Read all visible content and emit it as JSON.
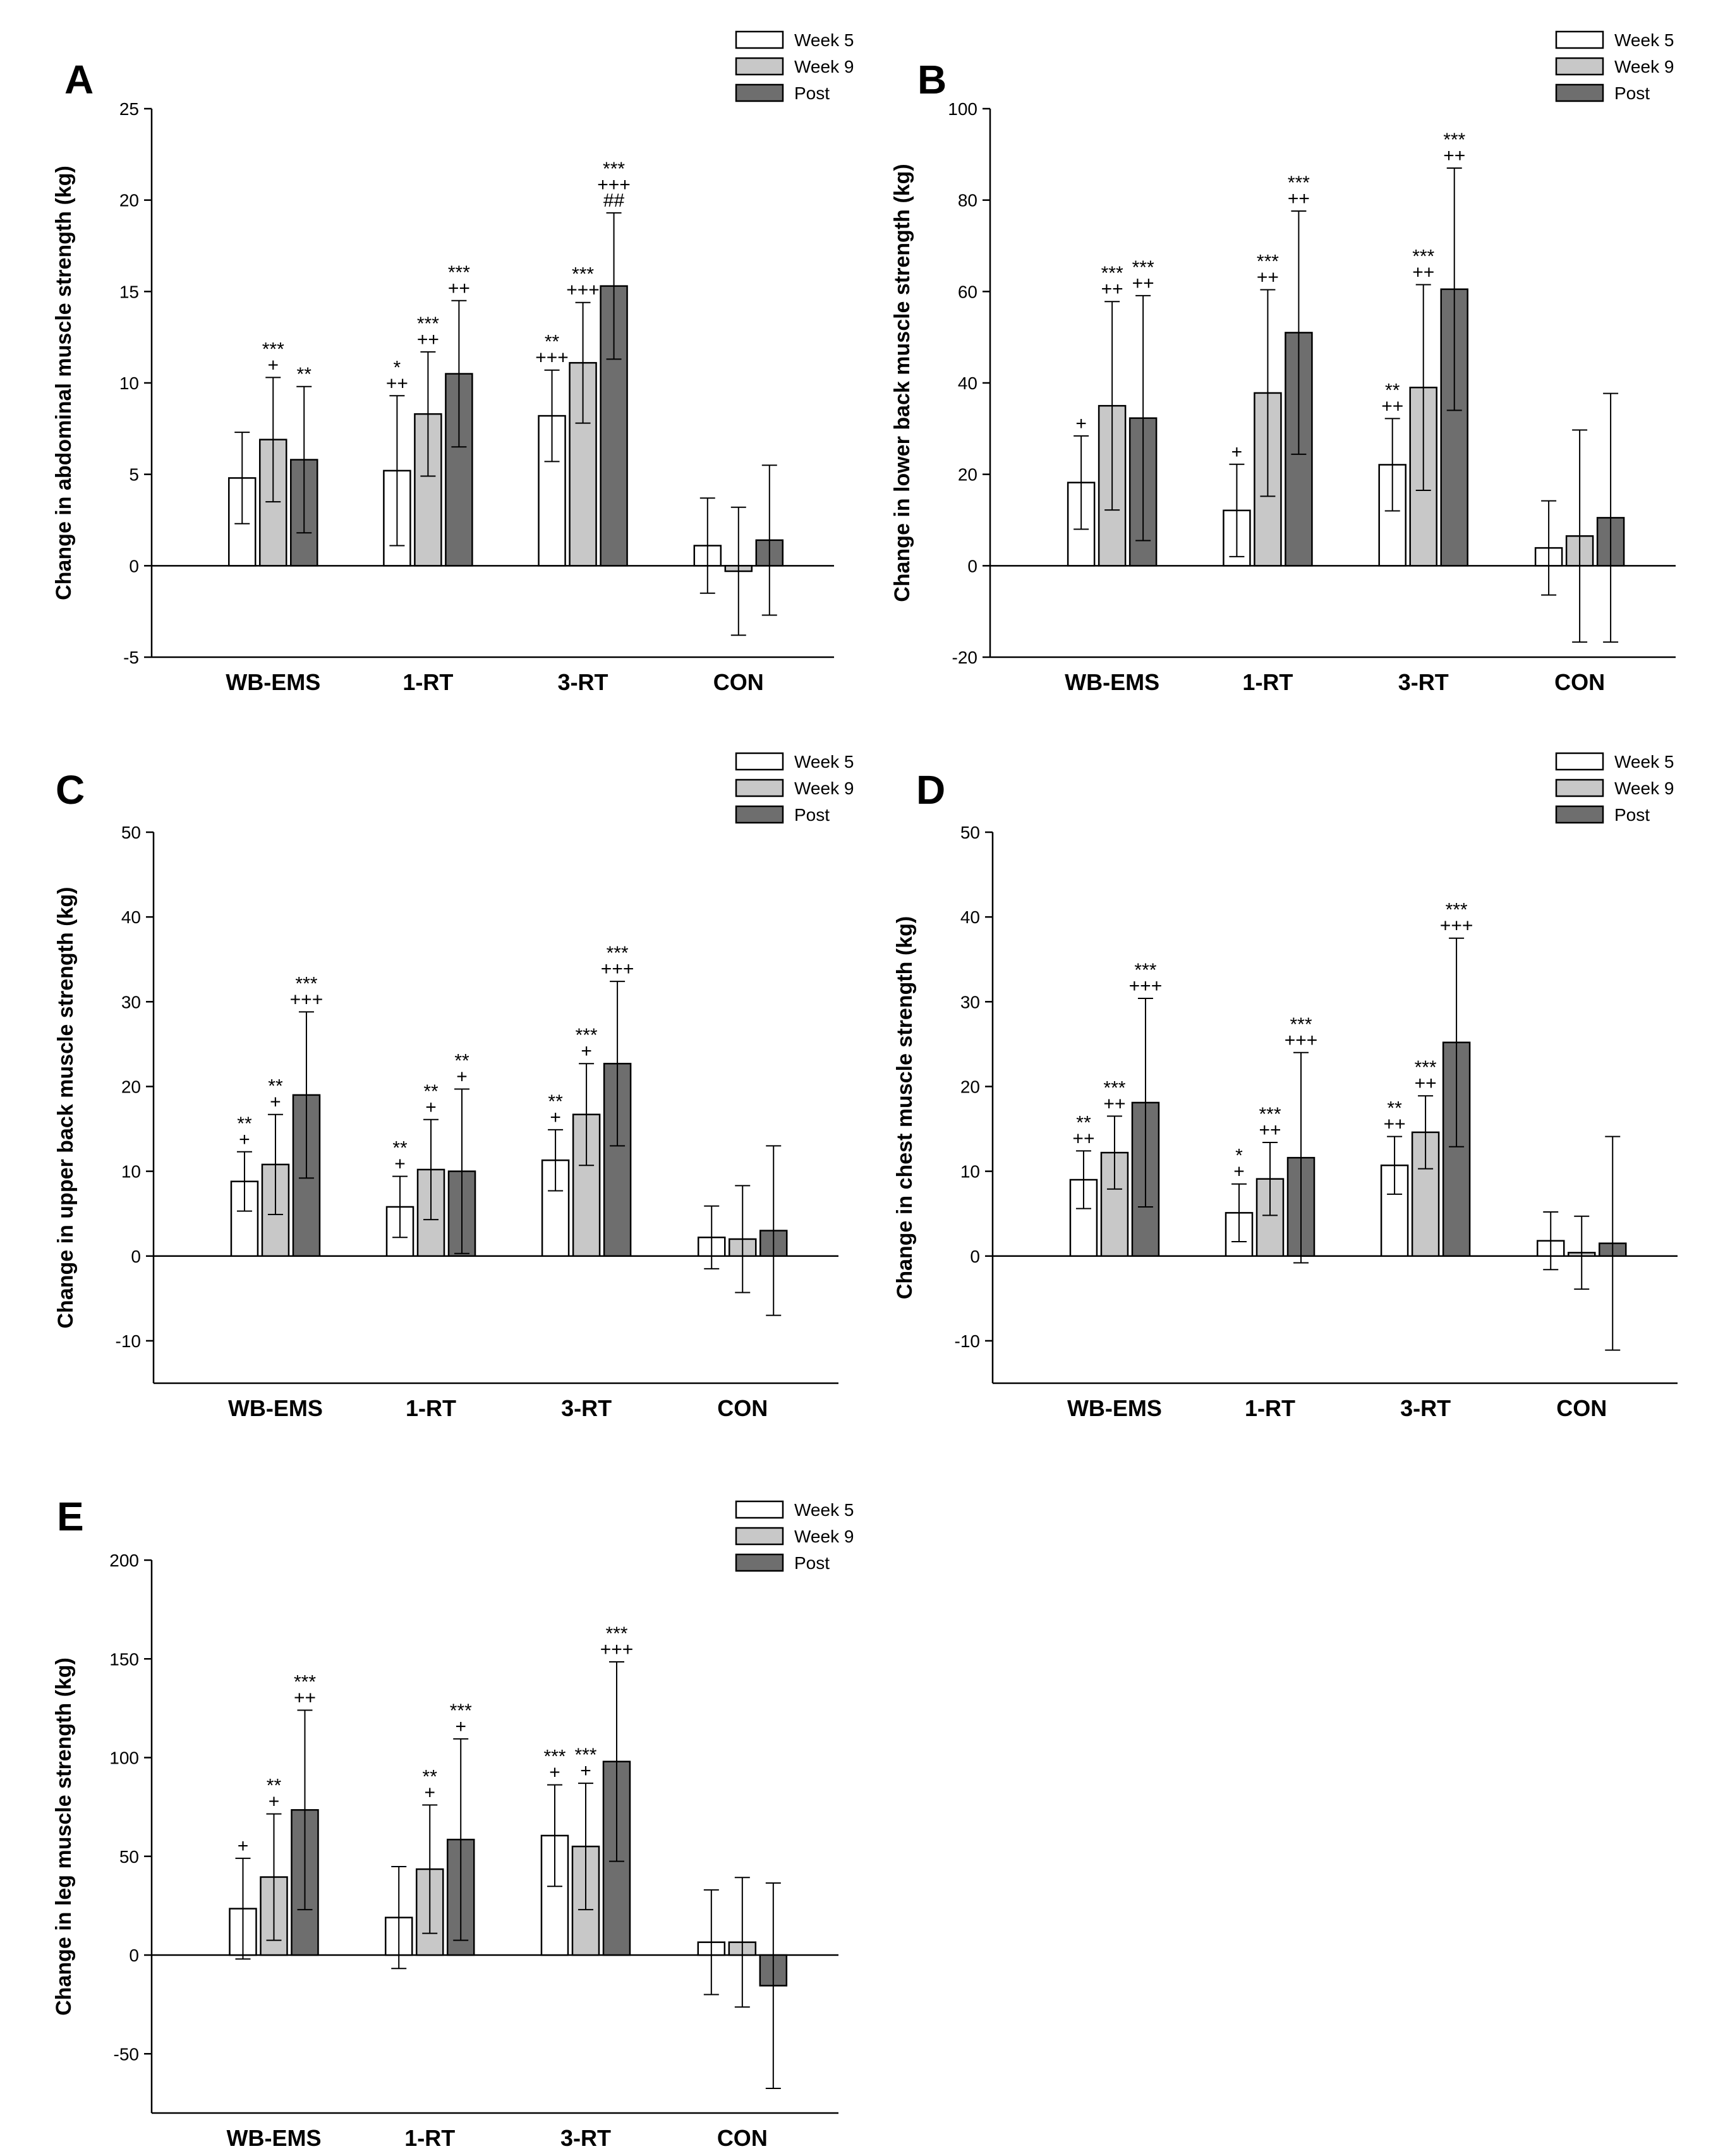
{
  "chart_data": [
    {
      "type": "bar",
      "panel": "A",
      "ylabel": "Change in abdominal muscle strength (kg)",
      "categories": [
        "WB-EMS",
        "1-RT",
        "3-RT",
        "CON"
      ],
      "ylim": [
        -5,
        25
      ],
      "yticks": [
        -5,
        0,
        5,
        10,
        15,
        20,
        25
      ],
      "legend": [
        "Week 5",
        "Week 9",
        "Post"
      ],
      "series": [
        {
          "name": "Week 5",
          "color": "#ffffff",
          "values": [
            4.8,
            5.2,
            8.2,
            1.1
          ],
          "errors": [
            2.5,
            4.1,
            2.5,
            2.6
          ],
          "labels": [
            "",
            "*\n++",
            "**\n+++",
            ""
          ]
        },
        {
          "name": "Week 9",
          "color": "#c8c8c8",
          "values": [
            6.9,
            8.3,
            11.1,
            -0.3
          ],
          "errors": [
            3.4,
            3.4,
            3.3,
            3.5
          ],
          "labels": [
            "***\n+",
            "***\n++",
            "***\n+++",
            ""
          ]
        },
        {
          "name": "Post",
          "color": "#6e6e6e",
          "values": [
            5.8,
            10.5,
            15.3,
            1.4
          ],
          "errors": [
            4.0,
            4.0,
            4.0,
            4.1
          ],
          "labels": [
            "**",
            "***\n++",
            "***\n+++\n##",
            ""
          ]
        }
      ]
    },
    {
      "type": "bar",
      "panel": "B",
      "ylabel": "Change in lower back muscle strength (kg)",
      "categories": [
        "WB-EMS",
        "1-RT",
        "3-RT",
        "CON"
      ],
      "ylim": [
        -20,
        100
      ],
      "yticks": [
        -20,
        0,
        20,
        40,
        60,
        80,
        100
      ],
      "legend": [
        "Week 5",
        "Week 9",
        "Post"
      ],
      "series": [
        {
          "name": "Week 5",
          "color": "#ffffff",
          "values": [
            18.2,
            12.1,
            22.1,
            3.9
          ],
          "errors": [
            10.2,
            10.1,
            10.1,
            10.3
          ],
          "labels": [
            "+",
            "+",
            "**\n++",
            ""
          ]
        },
        {
          "name": "Week 9",
          "color": "#c8c8c8",
          "values": [
            35.0,
            37.8,
            39.0,
            6.5
          ],
          "errors": [
            22.8,
            22.6,
            22.5,
            23.2
          ],
          "labels": [
            "***\n++",
            "***\n++",
            "***\n++",
            ""
          ]
        },
        {
          "name": "Post",
          "color": "#6e6e6e",
          "values": [
            32.3,
            51.0,
            60.5,
            10.5
          ],
          "errors": [
            26.8,
            26.6,
            26.5,
            27.2
          ],
          "labels": [
            "***\n++",
            "***\n++",
            "***\n++",
            ""
          ]
        }
      ]
    },
    {
      "type": "bar",
      "panel": "C",
      "ylabel": "Change in upper back muscle strength (kg)",
      "categories": [
        "WB-EMS",
        "1-RT",
        "3-RT",
        "CON"
      ],
      "ylim": [
        -15,
        50
      ],
      "yticks": [
        -10,
        0,
        10,
        20,
        30,
        40,
        50
      ],
      "legend": [
        "Week 5",
        "Week 9",
        "Post"
      ],
      "series": [
        {
          "name": "Week 5",
          "color": "#ffffff",
          "values": [
            8.8,
            5.8,
            11.3,
            2.2
          ],
          "errors": [
            3.5,
            3.6,
            3.6,
            3.7
          ],
          "labels": [
            "**\n+",
            "**\n+",
            "**\n+",
            ""
          ]
        },
        {
          "name": "Week 9",
          "color": "#c8c8c8",
          "values": [
            10.8,
            10.2,
            16.7,
            2.0
          ],
          "errors": [
            5.9,
            5.9,
            6.0,
            6.3
          ],
          "labels": [
            "**\n+",
            "**\n+",
            "***\n+",
            ""
          ]
        },
        {
          "name": "Post",
          "color": "#6e6e6e",
          "values": [
            19.0,
            10.0,
            22.7,
            3.0
          ],
          "errors": [
            9.8,
            9.7,
            9.7,
            10.0
          ],
          "labels": [
            "***\n+++",
            "**\n+",
            "***\n+++",
            ""
          ]
        }
      ]
    },
    {
      "type": "bar",
      "panel": "D",
      "ylabel": "Change in chest muscle strength (kg)",
      "categories": [
        "WB-EMS",
        "1-RT",
        "3-RT",
        "CON"
      ],
      "ylim": [
        -15,
        50
      ],
      "yticks": [
        -10,
        0,
        10,
        20,
        30,
        40,
        50
      ],
      "legend": [
        "Week 5",
        "Week 9",
        "Post"
      ],
      "series": [
        {
          "name": "Week 5",
          "color": "#ffffff",
          "values": [
            9.0,
            5.1,
            10.7,
            1.8
          ],
          "errors": [
            3.4,
            3.4,
            3.4,
            3.4
          ],
          "labels": [
            "**\n++",
            "*\n+",
            "**\n++",
            ""
          ]
        },
        {
          "name": "Week 9",
          "color": "#c8c8c8",
          "values": [
            12.2,
            9.1,
            14.6,
            0.4
          ],
          "errors": [
            4.3,
            4.3,
            4.3,
            4.3
          ],
          "labels": [
            "***\n++",
            "***\n++",
            "***\n++",
            ""
          ]
        },
        {
          "name": "Post",
          "color": "#6e6e6e",
          "values": [
            18.1,
            11.6,
            25.2,
            1.5
          ],
          "errors": [
            12.3,
            12.4,
            12.3,
            12.6
          ],
          "labels": [
            "***\n+++",
            "***\n+++",
            "***\n+++",
            ""
          ]
        }
      ]
    },
    {
      "type": "bar",
      "panel": "E",
      "ylabel": "Change in leg muscle strength (kg)",
      "categories": [
        "WB-EMS",
        "1-RT",
        "3-RT",
        "CON"
      ],
      "ylim": [
        -80,
        200
      ],
      "yticks": [
        -50,
        0,
        50,
        100,
        150,
        200
      ],
      "legend": [
        "Week 5",
        "Week 9",
        "Post"
      ],
      "series": [
        {
          "name": "Week 5",
          "color": "#ffffff",
          "values": [
            23.5,
            19.0,
            60.5,
            6.5
          ],
          "errors": [
            25.5,
            25.8,
            25.7,
            26.5
          ],
          "labels": [
            "+",
            "",
            "***\n+",
            ""
          ]
        },
        {
          "name": "Week 9",
          "color": "#c8c8c8",
          "values": [
            39.5,
            43.5,
            55.0,
            6.5
          ],
          "errors": [
            32.0,
            32.5,
            32.0,
            32.8
          ],
          "labels": [
            "**\n+",
            "**\n+",
            "***\n+",
            ""
          ]
        },
        {
          "name": "Post",
          "color": "#6e6e6e",
          "values": [
            73.5,
            58.5,
            98.0,
            -15.5
          ],
          "errors": [
            50.5,
            51.0,
            50.5,
            52.0
          ],
          "labels": [
            "***\n++",
            "***\n+",
            "***\n+++",
            ""
          ]
        }
      ]
    }
  ]
}
